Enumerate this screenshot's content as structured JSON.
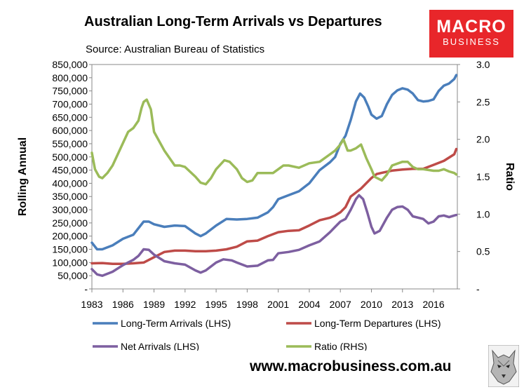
{
  "header": {
    "title": "Australian Long-Term Arrivals vs Departures",
    "source": "Source: Australian Bureau of Statistics"
  },
  "logo": {
    "line1": "MACRO",
    "line2": "BUSINESS",
    "color": "#e8262a"
  },
  "footer": {
    "website": "www.macrobusiness.com.au"
  },
  "chart_data": {
    "type": "line",
    "title": "Australian Long-Term Arrivals vs Departures",
    "ylabel": "Rolling Annual",
    "y2label": "Ratio",
    "ylim": [
      0,
      850000
    ],
    "y2lim": [
      0,
      3.0
    ],
    "yticks": [
      0,
      50000,
      100000,
      150000,
      200000,
      250000,
      300000,
      350000,
      400000,
      450000,
      500000,
      550000,
      600000,
      650000,
      700000,
      750000,
      800000,
      850000
    ],
    "ytick_labels": [
      "-",
      "50,000",
      "100,000",
      "150,000",
      "200,000",
      "250,000",
      "300,000",
      "350,000",
      "400,000",
      "450,000",
      "500,000",
      "550,000",
      "600,000",
      "650,000",
      "700,000",
      "750,000",
      "800,000",
      "850,000"
    ],
    "y2ticks": [
      0,
      0.5,
      1.0,
      1.5,
      2.0,
      2.5,
      3.0
    ],
    "y2tick_labels": [
      "-",
      "0.5",
      "1.0",
      "1.5",
      "2.0",
      "2.5",
      "3.0"
    ],
    "xlim": [
      1983,
      2018.3
    ],
    "xticks": [
      1983,
      1986,
      1989,
      1992,
      1995,
      1998,
      2001,
      2004,
      2007,
      2010,
      2013,
      2016
    ],
    "xtick_labels": [
      "1983",
      "1986",
      "1989",
      "1992",
      "1995",
      "1998",
      "2001",
      "2004",
      "2007",
      "2010",
      "2013",
      "2016"
    ],
    "series": [
      {
        "name": "Long-Term Arrivals (LHS)",
        "axis": "left",
        "color": "#4a7ebb",
        "x": [
          1983,
          1983.5,
          1984,
          1985,
          1986,
          1987,
          1987.6,
          1988,
          1988.5,
          1989,
          1990,
          1991,
          1992,
          1993,
          1993.5,
          1994,
          1995,
          1996,
          1997,
          1998,
          1999,
          2000,
          2000.5,
          2001,
          2002,
          2003,
          2004,
          2005,
          2006,
          2006.5,
          2007,
          2007.5,
          2008,
          2008.5,
          2008.9,
          2009.3,
          2009.7,
          2010,
          2010.5,
          2011,
          2011.5,
          2012,
          2012.5,
          2013,
          2013.5,
          2014,
          2014.5,
          2015,
          2015.5,
          2016,
          2016.5,
          2017,
          2017.5,
          2018,
          2018.2
        ],
        "y": [
          175000,
          150000,
          150000,
          165000,
          190000,
          205000,
          235000,
          255000,
          255000,
          245000,
          235000,
          240000,
          238000,
          210000,
          200000,
          210000,
          240000,
          265000,
          263000,
          265000,
          270000,
          290000,
          310000,
          340000,
          355000,
          370000,
          400000,
          450000,
          480000,
          500000,
          550000,
          580000,
          640000,
          710000,
          740000,
          725000,
          690000,
          660000,
          645000,
          655000,
          700000,
          735000,
          752000,
          760000,
          755000,
          740000,
          715000,
          710000,
          712000,
          718000,
          750000,
          770000,
          778000,
          795000,
          810000
        ]
      },
      {
        "name": "Long-Term Departures (LHS)",
        "axis": "left",
        "color": "#be4b48",
        "x": [
          1983,
          1984,
          1985,
          1986,
          1987,
          1988,
          1989,
          1990,
          1991,
          1992,
          1993,
          1994,
          1995,
          1996,
          1997,
          1998,
          1999,
          2000,
          2001,
          2002,
          2003,
          2004,
          2005,
          2006,
          2006.5,
          2007,
          2007.5,
          2008,
          2009,
          2009.5,
          2010,
          2010.5,
          2011,
          2012,
          2013,
          2014,
          2015,
          2016,
          2017,
          2018,
          2018.2
        ],
        "y": [
          97000,
          98000,
          95000,
          95000,
          97000,
          100000,
          120000,
          140000,
          145000,
          145000,
          143000,
          143000,
          145000,
          150000,
          160000,
          180000,
          183000,
          200000,
          215000,
          220000,
          222000,
          240000,
          260000,
          270000,
          278000,
          290000,
          310000,
          350000,
          380000,
          400000,
          420000,
          435000,
          440000,
          448000,
          452000,
          455000,
          455000,
          470000,
          485000,
          510000,
          530000
        ]
      },
      {
        "name": "Net Arrivals (LHS)",
        "axis": "left",
        "color": "#7d5fa0",
        "x": [
          1983,
          1983.5,
          1984,
          1985,
          1986,
          1987,
          1987.5,
          1988,
          1988.5,
          1989,
          1990,
          1991,
          1992,
          1993,
          1993.5,
          1994,
          1995,
          1995.7,
          1996.5,
          1997,
          1998,
          1999,
          2000,
          2000.5,
          2001,
          2002,
          2003,
          2004,
          2005,
          2006,
          2006.5,
          2007,
          2007.5,
          2008,
          2008.5,
          2008.8,
          2009.2,
          2009.6,
          2010,
          2010.3,
          2010.8,
          2011.5,
          2012,
          2012.5,
          2013,
          2013.5,
          2014,
          2015,
          2015.5,
          2016,
          2016.5,
          2017,
          2017.5,
          2018,
          2018.2
        ],
        "y": [
          75000,
          55000,
          50000,
          65000,
          90000,
          110000,
          125000,
          150000,
          148000,
          130000,
          105000,
          97000,
          92000,
          70000,
          62000,
          70000,
          100000,
          112000,
          108000,
          100000,
          85000,
          88000,
          108000,
          110000,
          135000,
          140000,
          148000,
          165000,
          180000,
          215000,
          235000,
          255000,
          265000,
          300000,
          340000,
          355000,
          340000,
          290000,
          235000,
          210000,
          220000,
          270000,
          300000,
          310000,
          312000,
          300000,
          275000,
          265000,
          248000,
          255000,
          275000,
          278000,
          272000,
          278000,
          280000
        ]
      },
      {
        "name": "Ratio (RHS)",
        "axis": "right",
        "color": "#9bbb59",
        "x": [
          1983,
          1983.3,
          1983.7,
          1984,
          1984.5,
          1985,
          1985.5,
          1986,
          1986.5,
          1987,
          1987.5,
          1987.8,
          1988,
          1988.3,
          1988.7,
          1989,
          1990,
          1991,
          1991.5,
          1992,
          1993,
          1993.5,
          1994,
          1994.5,
          1995,
          1995.8,
          1996.3,
          1997,
          1997.5,
          1998,
          1998.5,
          1999,
          2000,
          2000.5,
          2001,
          2001.5,
          2002,
          2003,
          2004,
          2005,
          2006,
          2006.5,
          2007,
          2007.3,
          2007.7,
          2008,
          2008.5,
          2009,
          2009.5,
          2010,
          2010.3,
          2011,
          2011.5,
          2012,
          2013,
          2013.5,
          2014,
          2014.5,
          2015,
          2016,
          2016.5,
          2017,
          2017.5,
          2018,
          2018.2
        ],
        "y": [
          1.82,
          1.6,
          1.5,
          1.48,
          1.55,
          1.65,
          1.8,
          1.95,
          2.1,
          2.15,
          2.25,
          2.42,
          2.5,
          2.53,
          2.4,
          2.1,
          1.85,
          1.65,
          1.65,
          1.63,
          1.5,
          1.42,
          1.4,
          1.48,
          1.6,
          1.72,
          1.7,
          1.6,
          1.48,
          1.43,
          1.45,
          1.55,
          1.55,
          1.55,
          1.6,
          1.65,
          1.65,
          1.62,
          1.68,
          1.7,
          1.8,
          1.85,
          1.93,
          2.0,
          1.85,
          1.85,
          1.88,
          1.93,
          1.75,
          1.6,
          1.5,
          1.45,
          1.53,
          1.65,
          1.7,
          1.7,
          1.63,
          1.6,
          1.6,
          1.58,
          1.58,
          1.6,
          1.57,
          1.55,
          1.53
        ]
      }
    ]
  }
}
